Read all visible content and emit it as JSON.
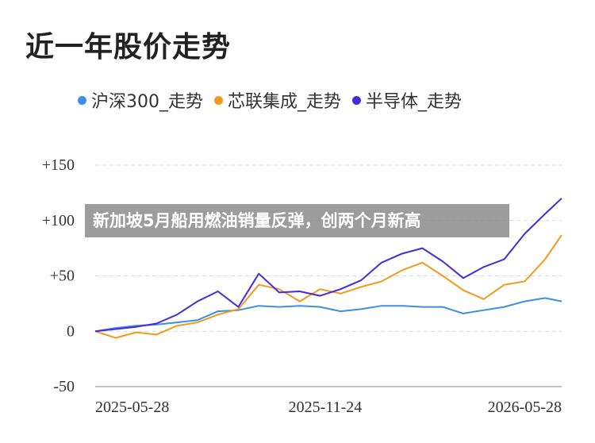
{
  "chart_data": {
    "type": "line",
    "title": "近一年股价走势",
    "x_tick_labels": [
      "2025-05-28",
      "2025-11-24",
      "2026-05-28"
    ],
    "y_tick_labels": [
      "+150",
      "+100",
      "+50",
      "0",
      "-50"
    ],
    "y_ticks": [
      150,
      100,
      50,
      0,
      -50
    ],
    "ylim": [
      -50,
      150
    ],
    "xlim": [
      "2025-05-28",
      "2026-05-28"
    ],
    "grid": "horizontal dashed",
    "legend_position": "top",
    "x": [
      "2025-05-28",
      "2025-06-13",
      "2025-06-29",
      "2025-07-15",
      "2025-07-31",
      "2025-08-16",
      "2025-09-01",
      "2025-09-17",
      "2025-10-03",
      "2025-10-19",
      "2025-11-04",
      "2025-11-20",
      "2025-12-06",
      "2025-12-22",
      "2026-01-07",
      "2026-01-23",
      "2026-02-08",
      "2026-02-24",
      "2026-03-12",
      "2026-03-28",
      "2026-04-13",
      "2026-04-29",
      "2026-05-15",
      "2026-05-28"
    ],
    "series": [
      {
        "name": "沪深300_走势",
        "color": "#3b8fe6",
        "values": [
          0,
          3,
          5,
          6,
          8,
          10,
          18,
          19,
          23,
          22,
          23,
          22,
          18,
          20,
          23,
          23,
          22,
          22,
          16,
          19,
          22,
          27,
          30,
          27
        ]
      },
      {
        "name": "芯联集成_走势",
        "color": "#f39a1e",
        "values": [
          0,
          -6,
          -1,
          -3,
          5,
          8,
          15,
          20,
          42,
          38,
          27,
          38,
          34,
          40,
          45,
          55,
          62,
          50,
          37,
          29,
          42,
          45,
          65,
          87
        ]
      },
      {
        "name": "半导体_走势",
        "color": "#4a2ad8",
        "values": [
          0,
          2,
          4,
          7,
          15,
          27,
          36,
          22,
          52,
          35,
          36,
          32,
          38,
          46,
          62,
          70,
          75,
          63,
          48,
          58,
          65,
          88,
          106,
          120
        ]
      }
    ]
  },
  "overlay": {
    "headline": "新加坡5月船用燃油销量反弹，创两个月新高"
  },
  "colors": {
    "grid": "#d9d9d9",
    "axis": "#888888"
  }
}
